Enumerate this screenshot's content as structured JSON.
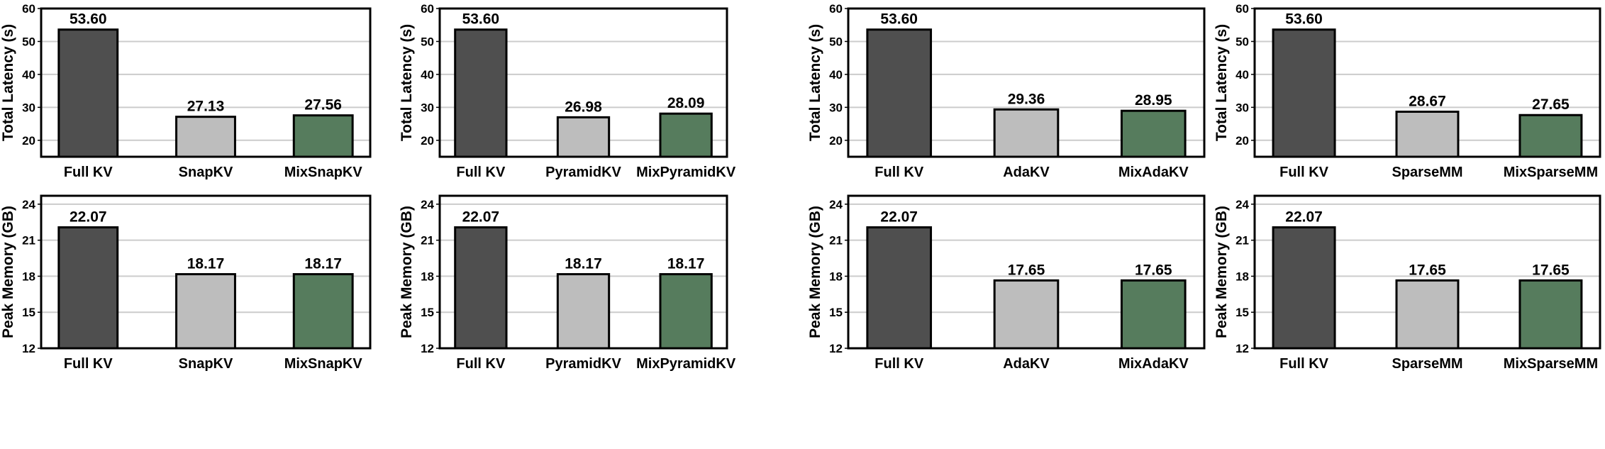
{
  "colors": {
    "full": "#4f4f4f",
    "baseline": "#bdbdbd",
    "mix": "#567c5d",
    "grid": "#cccccc"
  },
  "chart_data": [
    {
      "type": "bar",
      "ylabel": "Total Latency (s)",
      "categories": [
        "Full KV",
        "SnapKV",
        "MixSnapKV"
      ],
      "values": [
        53.6,
        27.13,
        27.56
      ],
      "labels": [
        "53.60",
        "27.13",
        "27.56"
      ],
      "ylim": [
        15,
        60
      ],
      "yticks": [
        "20",
        "30",
        "40",
        "50",
        "60"
      ],
      "grid": true
    },
    {
      "type": "bar",
      "ylabel": "Total Latency (s)",
      "categories": [
        "Full KV",
        "PyramidKV",
        "MixPyramidKV"
      ],
      "values": [
        53.6,
        26.98,
        28.09
      ],
      "labels": [
        "53.60",
        "26.98",
        "28.09"
      ],
      "ylim": [
        15,
        60
      ],
      "yticks": [
        "20",
        "30",
        "40",
        "50",
        "60"
      ],
      "grid": true
    },
    {
      "type": "bar",
      "ylabel": "Total Latency (s)",
      "categories": [
        "Full KV",
        "AdaKV",
        "MixAdaKV"
      ],
      "values": [
        53.6,
        29.36,
        28.95
      ],
      "labels": [
        "53.60",
        "29.36",
        "28.95"
      ],
      "ylim": [
        15,
        60
      ],
      "yticks": [
        "20",
        "30",
        "40",
        "50",
        "60"
      ],
      "grid": true
    },
    {
      "type": "bar",
      "ylabel": "Total Latency (s)",
      "categories": [
        "Full KV",
        "SparseMM",
        "MixSparseMM"
      ],
      "values": [
        53.6,
        28.67,
        27.65
      ],
      "labels": [
        "53.60",
        "28.67",
        "27.65"
      ],
      "ylim": [
        15,
        60
      ],
      "yticks": [
        "20",
        "30",
        "40",
        "50",
        "60"
      ],
      "grid": true
    },
    {
      "type": "bar",
      "ylabel": "Peak Memory (GB)",
      "categories": [
        "Full KV",
        "SnapKV",
        "MixSnapKV"
      ],
      "values": [
        22.07,
        18.17,
        18.17
      ],
      "labels": [
        "22.07",
        "18.17",
        "18.17"
      ],
      "ylim": [
        12,
        24.7
      ],
      "yticks": [
        "12",
        "15",
        "18",
        "21",
        "24"
      ],
      "grid": true
    },
    {
      "type": "bar",
      "ylabel": "Peak Memory (GB)",
      "categories": [
        "Full KV",
        "PyramidKV",
        "MixPyramidKV"
      ],
      "values": [
        22.07,
        18.17,
        18.17
      ],
      "labels": [
        "22.07",
        "18.17",
        "18.17"
      ],
      "ylim": [
        12,
        24.7
      ],
      "yticks": [
        "12",
        "15",
        "18",
        "21",
        "24"
      ],
      "grid": true
    },
    {
      "type": "bar",
      "ylabel": "Peak Memory (GB)",
      "categories": [
        "Full KV",
        "AdaKV",
        "MixAdaKV"
      ],
      "values": [
        22.07,
        17.65,
        17.65
      ],
      "labels": [
        "22.07",
        "17.65",
        "17.65"
      ],
      "ylim": [
        12,
        24.7
      ],
      "yticks": [
        "12",
        "15",
        "18",
        "21",
        "24"
      ],
      "grid": true
    },
    {
      "type": "bar",
      "ylabel": "Peak Memory (GB)",
      "categories": [
        "Full KV",
        "SparseMM",
        "MixSparseMM"
      ],
      "values": [
        22.07,
        17.65,
        17.65
      ],
      "labels": [
        "22.07",
        "17.65",
        "17.65"
      ],
      "ylim": [
        12,
        24.7
      ],
      "yticks": [
        "12",
        "15",
        "18",
        "21",
        "24"
      ],
      "grid": true
    }
  ]
}
